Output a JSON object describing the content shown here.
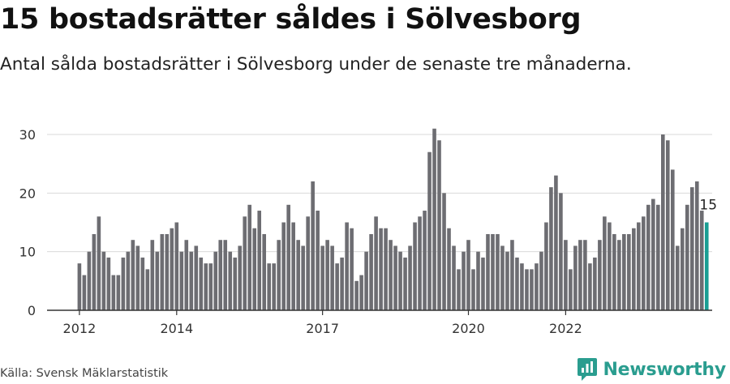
{
  "header": {
    "title": "15 bostadsrätter såldes i Sölvesborg",
    "subtitle": "Antal sålda bostadsrätter i Sölvesborg under de senaste tre månaderna."
  },
  "footer": {
    "source": "Källa: Svensk Mäklarstatistik",
    "brand": "Newsworthy",
    "brand_icon": "newsworthy-logo-icon"
  },
  "colors": {
    "bar": "#6d6d72",
    "highlight": "#1a9e93",
    "grid": "#d9d9d9",
    "axis": "#333333",
    "brand": "#2a9d8f"
  },
  "chart_data": {
    "type": "bar",
    "title": "Antal sålda bostadsrätter i Sölvesborg",
    "xlabel": "",
    "ylabel": "",
    "ylim": [
      0,
      33
    ],
    "yticks": [
      0,
      10,
      20,
      30
    ],
    "xticks": [
      {
        "label": "2012",
        "index": 0
      },
      {
        "label": "2014",
        "index": 20
      },
      {
        "label": "2017",
        "index": 50
      },
      {
        "label": "2020",
        "index": 80
      },
      {
        "label": "2022",
        "index": 100
      }
    ],
    "highlight_label": "15",
    "values": [
      8,
      6,
      10,
      13,
      16,
      10,
      9,
      6,
      6,
      9,
      10,
      12,
      11,
      9,
      7,
      12,
      10,
      13,
      13,
      14,
      15,
      10,
      12,
      10,
      11,
      9,
      8,
      8,
      10,
      12,
      12,
      10,
      9,
      11,
      16,
      18,
      14,
      17,
      13,
      8,
      8,
      12,
      15,
      18,
      15,
      12,
      11,
      16,
      22,
      17,
      11,
      12,
      11,
      8,
      9,
      15,
      14,
      5,
      6,
      10,
      13,
      16,
      14,
      14,
      12,
      11,
      10,
      9,
      11,
      15,
      16,
      17,
      27,
      31,
      29,
      20,
      14,
      11,
      7,
      10,
      12,
      7,
      10,
      9,
      13,
      13,
      13,
      11,
      10,
      12,
      9,
      8,
      7,
      7,
      8,
      10,
      15,
      21,
      23,
      20,
      12,
      7,
      11,
      12,
      12,
      8,
      9,
      12,
      16,
      15,
      13,
      12,
      13,
      13,
      14,
      15,
      16,
      18,
      19,
      18,
      30,
      29,
      24,
      11,
      14,
      18,
      21,
      22,
      17,
      15
    ]
  }
}
